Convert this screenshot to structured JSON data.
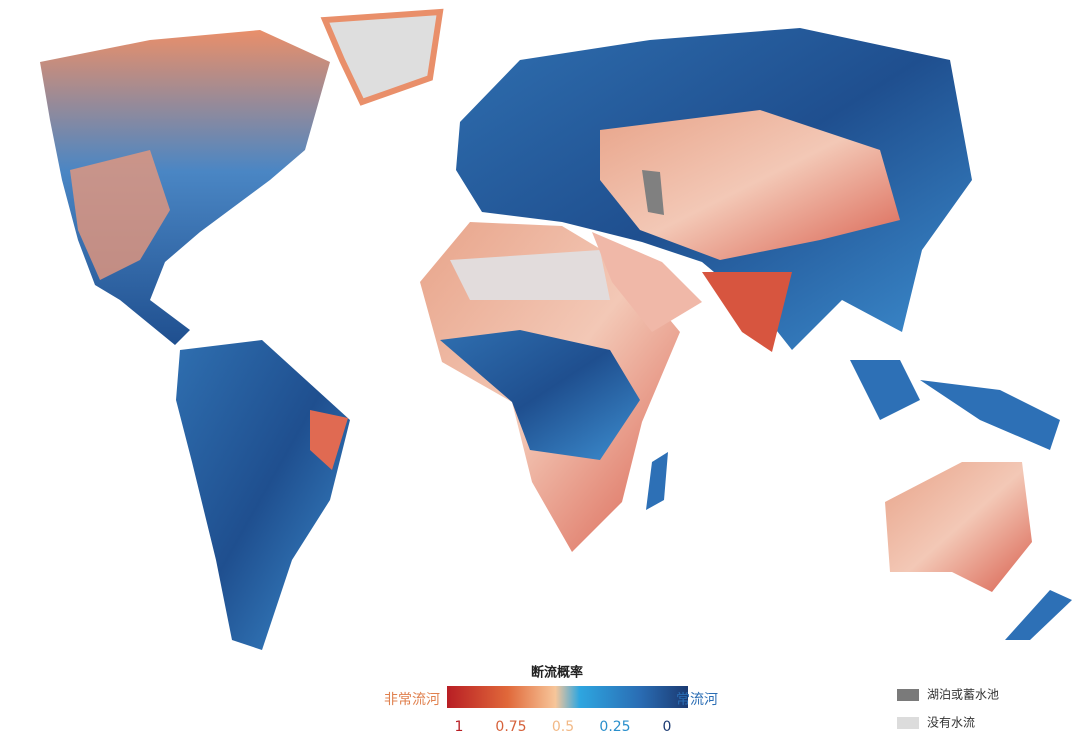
{
  "legend": {
    "title": "断流概率",
    "left_label": "非常流河",
    "right_label": "常流河",
    "ticks": [
      1,
      0.75,
      0.5,
      0.25,
      0
    ]
  },
  "key": {
    "items": [
      "湖泊或蓄水池",
      "没有水流"
    ]
  }
}
